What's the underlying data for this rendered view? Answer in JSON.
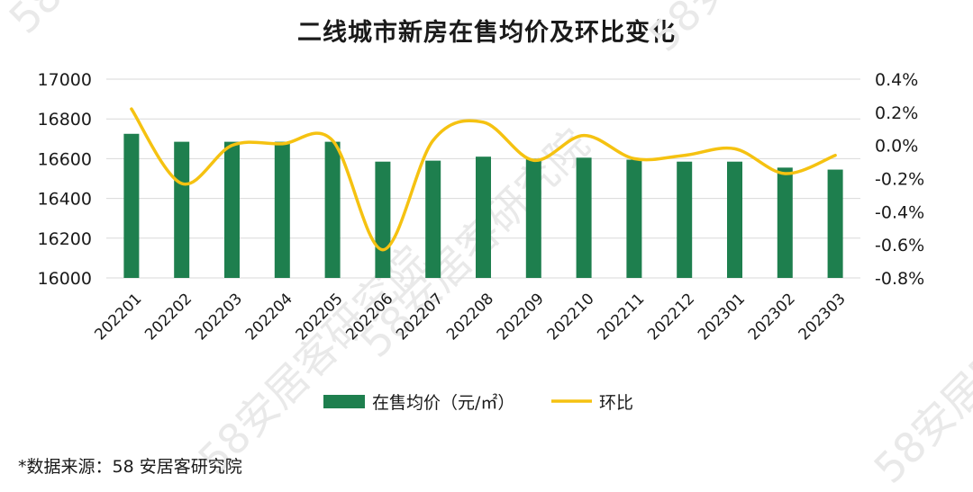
{
  "watermark_text": "58安居客研究院",
  "source_note": "*数据来源：58 安居客研究院",
  "colors": {
    "bar": "#1e7f4e",
    "line": "#f5c211",
    "grid": "#d9d9d9"
  },
  "chart_data": {
    "type": "bar",
    "title": "二线城市新房在售均价及环比变化",
    "categories": [
      "202201",
      "202202",
      "202203",
      "202204",
      "202205",
      "202206",
      "202207",
      "202208",
      "202209",
      "202210",
      "202211",
      "202212",
      "202301",
      "202302",
      "202303"
    ],
    "series": [
      {
        "name": "在售均价（元/㎡）",
        "type": "bar",
        "axis": "left",
        "values": [
          16725,
          16685,
          16685,
          16685,
          16685,
          16585,
          16590,
          16610,
          16600,
          16605,
          16595,
          16585,
          16585,
          16555,
          16545
        ]
      },
      {
        "name": "环比",
        "type": "line",
        "axis": "right",
        "unit": "%",
        "values": [
          0.22,
          -0.23,
          0.0,
          0.01,
          0.03,
          -0.63,
          0.03,
          0.14,
          -0.09,
          0.06,
          -0.08,
          -0.06,
          -0.02,
          -0.17,
          -0.06
        ]
      }
    ],
    "y_left": {
      "min": 16000,
      "max": 17000,
      "ticks": [
        "17000",
        "16800",
        "16600",
        "16400",
        "16200",
        "16000"
      ]
    },
    "y_right": {
      "min": -0.8,
      "max": 0.4,
      "ticks": [
        "0.4%",
        "0.2%",
        "0.0%",
        "-0.2%",
        "-0.4%",
        "-0.6%",
        "-0.8%"
      ]
    },
    "grid": true,
    "legend_position": "bottom"
  }
}
